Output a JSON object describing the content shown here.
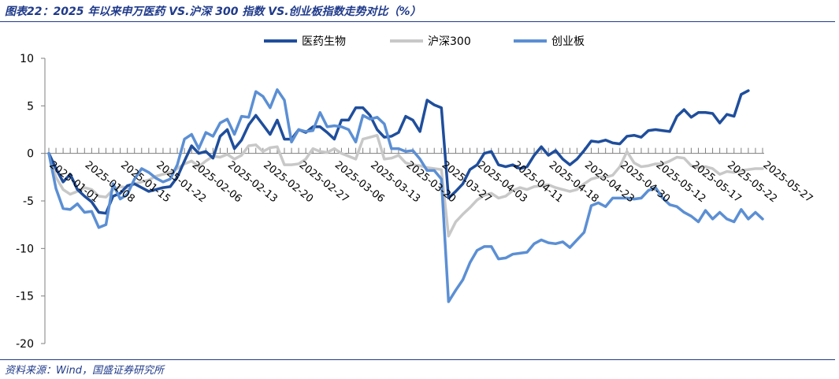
{
  "header": {
    "title": "图表22：2025 年以来申万医药 VS.沪深 300 指数 VS.创业板指数走势对比（%）"
  },
  "footer": {
    "source": "资料来源：Wind，国盛证券研究所"
  },
  "chart_data": {
    "type": "line",
    "title": "",
    "xlabel": "",
    "ylabel": "",
    "ylim": [
      -20,
      10
    ],
    "yticks": [
      10,
      5,
      0,
      -5,
      -10,
      -15,
      -20
    ],
    "grid": false,
    "legend_position": "top",
    "x_tick_labels": [
      "2025-01-01",
      "2025-01-08",
      "2025-01-15",
      "2025-01-22",
      "2025-02-06",
      "2025-02-13",
      "2025-02-20",
      "2025-02-27",
      "2025-03-06",
      "2025-03-13",
      "2025-03-20",
      "2025-03-27",
      "2025-04-03",
      "2025-04-11",
      "2025-04-18",
      "2025-04-23",
      "2025-04-30",
      "2025-05-12",
      "2025-05-17",
      "2025-05-22",
      "2025-05-27"
    ],
    "x_tick_positions": [
      0,
      5,
      10,
      15,
      20,
      25,
      30,
      35,
      40,
      45,
      50,
      55,
      60,
      65,
      70,
      75,
      80,
      85,
      90,
      95,
      100
    ],
    "n_points": 101,
    "series": [
      {
        "name": "医药生物",
        "color": "#1f4e9c",
        "values": [
          0,
          -1.6,
          -3,
          -2.2,
          -3.8,
          -4.5,
          -5.1,
          -6.2,
          -6.3,
          -4.5,
          -4.2,
          -3.4,
          -3.2,
          -3.6,
          -4,
          -3.8,
          -3.6,
          -3.5,
          -2.5,
          -0.8,
          0.8,
          0,
          0.2,
          -0.5,
          1.8,
          2.5,
          0.5,
          1.4,
          3,
          4,
          3,
          2,
          3.5,
          1.5,
          1.5,
          2.5,
          2.2,
          2.8,
          2.8,
          2.2,
          1.5,
          3.5,
          3.5,
          4.8,
          4.8,
          4,
          2.5,
          1.7,
          1.8,
          2.2,
          3.9,
          3.5,
          2.3,
          5.6,
          5.1,
          4.8,
          -4.7,
          -4,
          -3.2,
          -1.7,
          -1.2,
          0,
          0.2,
          -1.2,
          -1.4,
          -1.2,
          -1.6,
          -1.4,
          -0.2,
          0.7,
          -0.2,
          0.3,
          -0.6,
          -1.2,
          -0.6,
          0.3,
          1.3,
          1.2,
          1.4,
          1.1,
          1,
          1.8,
          1.9,
          1.7,
          2.4,
          2.5,
          2.4,
          2.3,
          3.9,
          4.6,
          3.8,
          4.3,
          4.3,
          4.2,
          3.2,
          4.1,
          3.9,
          6.2,
          6.6
        ]
      },
      {
        "name": "沪深300",
        "color": "#c8c8c8",
        "values": [
          0,
          -2.5,
          -3.8,
          -4.3,
          -4,
          -3.6,
          -3.8,
          -4.5,
          -4.6,
          -3.8,
          -3.5,
          -3.6,
          -3.2,
          -3,
          -2.8,
          -2.4,
          -2.2,
          -2,
          -1.6,
          -1.1,
          -0.8,
          -1.4,
          -0.8,
          -0.3,
          -0.4,
          -0.1,
          -0.6,
          -0.2,
          0.8,
          0.9,
          0.2,
          0.6,
          0.7,
          -1.2,
          -1.2,
          -1.1,
          -0.6,
          0.5,
          0.2,
          0.1,
          0.5,
          0,
          -0.3,
          -0.6,
          1.5,
          1.7,
          1.9,
          -0.6,
          -0.5,
          -0.2,
          -1,
          -1.2,
          -1.3,
          -1.5,
          -1.6,
          -1.7,
          -8.7,
          -7.2,
          -6.4,
          -5.7,
          -4.9,
          -4.4,
          -4.2,
          -4.7,
          -4.5,
          -3.9,
          -3.6,
          -3.8,
          -3.5,
          -3.4,
          -3.3,
          -3.6,
          -3.8,
          -4,
          -3.8,
          -3.2,
          -2.7,
          -2.5,
          -2.5,
          -2.3,
          -1.4,
          0.2,
          -1,
          -1.4,
          -1.3,
          -1.1,
          -1.1,
          -0.8,
          -0.4,
          -0.5,
          -1.3,
          -1.5,
          -1.4,
          -1.6,
          -2.2,
          -1.9,
          -2,
          -1.8,
          -1.7,
          -1.6,
          -1.6
        ]
      },
      {
        "name": "创业板",
        "color": "#5b8fd4",
        "values": [
          0,
          -3.7,
          -5.8,
          -5.9,
          -5.3,
          -6.2,
          -6.1,
          -7.8,
          -7.5,
          -3.2,
          -4.8,
          -4.3,
          -2.7,
          -1.6,
          -2,
          -2.6,
          -3,
          -2.7,
          -1.2,
          1.5,
          2,
          0.5,
          2.2,
          1.8,
          3.2,
          3.6,
          2,
          3.9,
          3.8,
          6.5,
          6,
          4.8,
          6.7,
          5.6,
          1.2,
          2.5,
          2.3,
          2.4,
          4.3,
          2.8,
          2.9,
          2.8,
          2.5,
          1.2,
          4,
          3.6,
          3.8,
          3.1,
          0.5,
          0.5,
          0.2,
          0.3,
          -0.6,
          -1.8,
          -1.8,
          -2.7,
          -15.6,
          -14.4,
          -13.3,
          -11.5,
          -10.2,
          -9.8,
          -9.8,
          -11.1,
          -11,
          -10.6,
          -10.5,
          -10.4,
          -9.5,
          -9.1,
          -9.4,
          -9.5,
          -9.3,
          -9.9,
          -9.1,
          -8.3,
          -5.5,
          -5.2,
          -5.6,
          -4.7,
          -4.7,
          -4.7,
          -4.8,
          -4.7,
          -3.9,
          -3.6,
          -4.7,
          -5.4,
          -5.6,
          -6.2,
          -6.6,
          -7.2,
          -6,
          -6.9,
          -6.2,
          -6.9,
          -7.2,
          -5.9,
          -6.9,
          -6.2,
          -6.9
        ]
      }
    ]
  }
}
